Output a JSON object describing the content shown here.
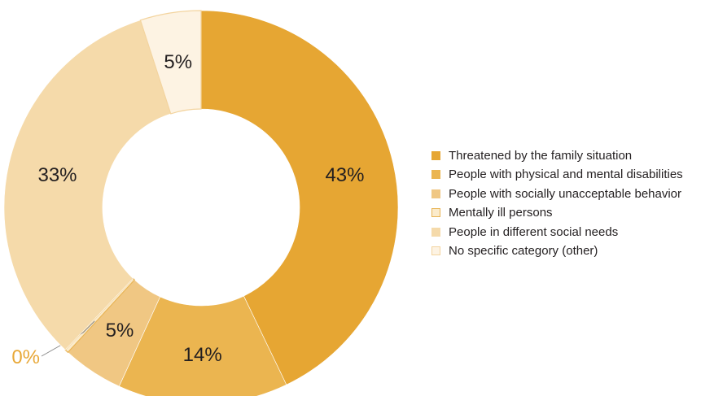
{
  "chart_data": {
    "type": "pie",
    "subtype": "donut",
    "legend_position": "right",
    "slices": [
      {
        "name": "Threatened by the family situation",
        "value": 43,
        "label": "43%",
        "color": "#E6A633",
        "border": "#E6A633"
      },
      {
        "name": "People with physical and mental disabilities",
        "value": 14,
        "label": "14%",
        "color": "#EBB550",
        "border": "#EBB550"
      },
      {
        "name": "People with socially unacceptable behavior",
        "value": 5,
        "label": "5%",
        "color": "#F0C783",
        "border": "#F0C783"
      },
      {
        "name": "Mentally ill persons",
        "value": 0.3,
        "label": "0%",
        "color": "#FBEBCB",
        "border": "#E8B456"
      },
      {
        "name": "People in different social needs",
        "value": 33,
        "label": "33%",
        "color": "#F5DAAA",
        "border": "#F5DAAA"
      },
      {
        "name": "No specific category (other)",
        "value": 5,
        "label": "5%",
        "color": "#FDF3E3",
        "border": "#F3D49F"
      }
    ],
    "callout_label_color": "#E8A838"
  }
}
